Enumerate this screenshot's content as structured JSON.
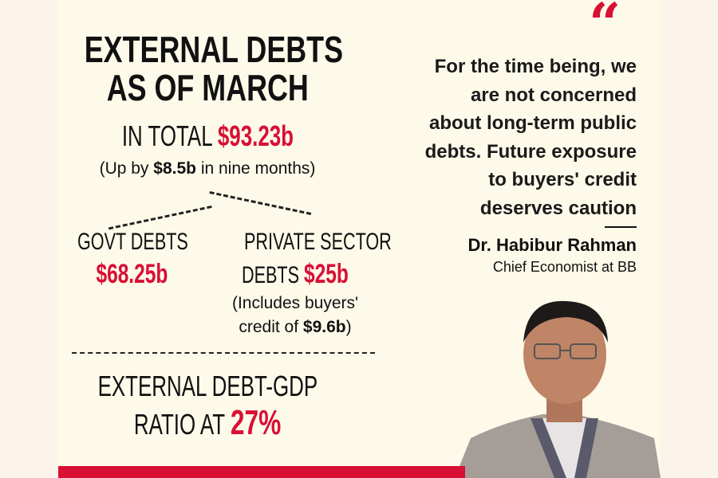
{
  "headline": {
    "line1": "EXTERNAL DEBTS",
    "line2": "AS OF MARCH"
  },
  "total": {
    "label": "IN TOTAL",
    "value": "$93.23b",
    "note_prefix": "(Up by",
    "note_value": "$8.5b",
    "note_suffix": "in nine months)"
  },
  "govt": {
    "label": "GOVT DEBTS",
    "value": "$68.25b"
  },
  "private": {
    "line1": "PRIVATE SECTOR",
    "line2": "DEBTS",
    "value": "$25b",
    "note_line1": "(Includes buyers'",
    "note_line2_prefix": "credit of",
    "note_line2_value": "$9.6b",
    "note_line2_suffix": ")"
  },
  "ratio": {
    "line1": "EXTERNAL DEBT-GDP",
    "line2": "RATIO AT",
    "value": "27%"
  },
  "quote": {
    "mark": "“",
    "lines": [
      "For the time being, we",
      "are not concerned",
      "about long-term public",
      "debts. Future exposure",
      "to buyers' credit",
      "deserves caution"
    ]
  },
  "speaker": {
    "name": "Dr. Habibur Rahman",
    "title": "Chief Economist at BB"
  },
  "colors": {
    "accent": "#d90f34",
    "background": "#fdfaea"
  }
}
